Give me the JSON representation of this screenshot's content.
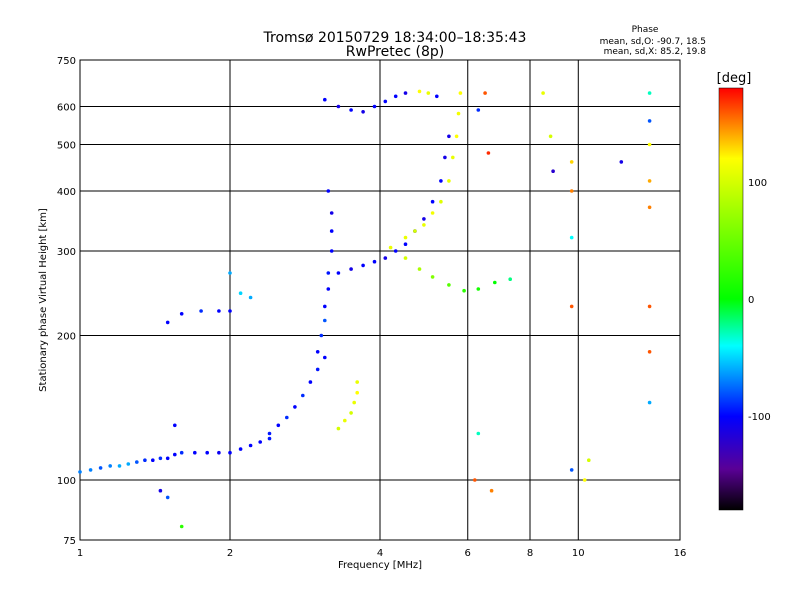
{
  "chart_data": {
    "type": "scatter",
    "title": "Tromsø 20150729 18:34:00–18:35:43",
    "subtitle": "RwPretec (8p)",
    "xlabel": "Frequency [MHz]",
    "ylabel": "Stationary phase Virtual Height [km]",
    "x_scale": "log",
    "y_scale": "log",
    "xlim": [
      1,
      16
    ],
    "ylim": [
      75,
      750
    ],
    "x_ticks": [
      1,
      2,
      4,
      6,
      8,
      10,
      16
    ],
    "x_gridlines": [
      2,
      4,
      6,
      8,
      10
    ],
    "y_ticks": [
      75,
      100,
      200,
      300,
      400,
      500,
      600,
      750
    ],
    "y_gridlines": [
      100,
      200,
      300,
      400,
      500,
      600
    ],
    "grid": true,
    "stats": {
      "heading": "Phase",
      "line_o": "mean, sd,O: -90.7, 18.5",
      "line_x": "mean, sd,X:  85.2, 19.8"
    },
    "colorbar": {
      "label": "[deg]",
      "range": [
        -180,
        180
      ],
      "ticks": [
        100,
        0,
        -100
      ],
      "tick_labels": [
        "100",
        "0",
        "-100"
      ],
      "colormap": "rainbow",
      "stops": [
        {
          "value": 180,
          "color": "#ff0000"
        },
        {
          "value": 120,
          "color": "#ffff00"
        },
        {
          "value": 0,
          "color": "#00ff00"
        },
        {
          "value": -40,
          "color": "#00ffff"
        },
        {
          "value": -100,
          "color": "#0000ff"
        },
        {
          "value": -145,
          "color": "#5a0096"
        },
        {
          "value": -180,
          "color": "#000000"
        }
      ]
    },
    "series": [
      {
        "trace": "low-E-region",
        "points": [
          {
            "x": 1.0,
            "y": 104,
            "phase": -70
          },
          {
            "x": 1.05,
            "y": 105,
            "phase": -70
          },
          {
            "x": 1.1,
            "y": 106,
            "phase": -80
          },
          {
            "x": 1.15,
            "y": 107,
            "phase": -70
          },
          {
            "x": 1.2,
            "y": 107,
            "phase": -60
          },
          {
            "x": 1.25,
            "y": 108,
            "phase": -60
          },
          {
            "x": 1.3,
            "y": 109,
            "phase": -80
          },
          {
            "x": 1.35,
            "y": 110,
            "phase": -90
          },
          {
            "x": 1.4,
            "y": 110,
            "phase": -100
          },
          {
            "x": 1.45,
            "y": 111,
            "phase": -90
          },
          {
            "x": 1.5,
            "y": 111,
            "phase": -100
          },
          {
            "x": 1.55,
            "y": 113,
            "phase": -100
          },
          {
            "x": 1.6,
            "y": 114,
            "phase": -90
          },
          {
            "x": 1.7,
            "y": 114,
            "phase": -100
          },
          {
            "x": 1.8,
            "y": 114,
            "phase": -100
          },
          {
            "x": 1.9,
            "y": 114,
            "phase": -105
          },
          {
            "x": 2.0,
            "y": 114,
            "phase": -100
          },
          {
            "x": 2.1,
            "y": 116,
            "phase": -100
          },
          {
            "x": 2.2,
            "y": 118,
            "phase": -100
          },
          {
            "x": 2.3,
            "y": 120,
            "phase": -100
          },
          {
            "x": 2.4,
            "y": 122,
            "phase": -95
          }
        ]
      },
      {
        "trace": "lower-cusp-ramp",
        "points": [
          {
            "x": 2.4,
            "y": 125,
            "phase": -95
          },
          {
            "x": 2.5,
            "y": 130,
            "phase": -100
          },
          {
            "x": 2.6,
            "y": 135,
            "phase": -90
          },
          {
            "x": 2.7,
            "y": 142,
            "phase": -100
          },
          {
            "x": 2.8,
            "y": 150,
            "phase": -90
          },
          {
            "x": 2.9,
            "y": 160,
            "phase": -100
          },
          {
            "x": 3.0,
            "y": 170,
            "phase": -95
          },
          {
            "x": 3.1,
            "y": 180,
            "phase": -100
          }
        ]
      },
      {
        "trace": "scatter-1.5-2.2",
        "points": [
          {
            "x": 1.5,
            "y": 213,
            "phase": -100
          },
          {
            "x": 1.6,
            "y": 222,
            "phase": -100
          },
          {
            "x": 1.75,
            "y": 225,
            "phase": -90
          },
          {
            "x": 1.9,
            "y": 225,
            "phase": -100
          },
          {
            "x": 2.0,
            "y": 225,
            "phase": -100
          },
          {
            "x": 2.0,
            "y": 270,
            "phase": -60
          },
          {
            "x": 2.1,
            "y": 245,
            "phase": -50
          },
          {
            "x": 2.2,
            "y": 240,
            "phase": -60
          },
          {
            "x": 1.55,
            "y": 130,
            "phase": -100
          },
          {
            "x": 1.45,
            "y": 95,
            "phase": -110
          },
          {
            "x": 1.5,
            "y": 92,
            "phase": -80
          },
          {
            "x": 1.6,
            "y": 80,
            "phase": 20
          }
        ]
      },
      {
        "trace": "f-region-vertical-3.1",
        "points": [
          {
            "x": 3.0,
            "y": 185,
            "phase": -100
          },
          {
            "x": 3.05,
            "y": 200,
            "phase": -90
          },
          {
            "x": 3.1,
            "y": 215,
            "phase": -80
          },
          {
            "x": 3.1,
            "y": 230,
            "phase": -100
          },
          {
            "x": 3.15,
            "y": 250,
            "phase": -100
          },
          {
            "x": 3.15,
            "y": 270,
            "phase": -95
          },
          {
            "x": 3.2,
            "y": 300,
            "phase": -100
          },
          {
            "x": 3.2,
            "y": 330,
            "phase": -100
          },
          {
            "x": 3.2,
            "y": 360,
            "phase": -110
          },
          {
            "x": 3.15,
            "y": 400,
            "phase": -100
          }
        ]
      },
      {
        "trace": "f2-layer",
        "points": [
          {
            "x": 3.3,
            "y": 270,
            "phase": -100
          },
          {
            "x": 3.5,
            "y": 275,
            "phase": -110
          },
          {
            "x": 3.7,
            "y": 280,
            "phase": -100
          },
          {
            "x": 3.9,
            "y": 285,
            "phase": -100
          },
          {
            "x": 4.1,
            "y": 290,
            "phase": -110
          },
          {
            "x": 4.3,
            "y": 300,
            "phase": -100
          },
          {
            "x": 4.5,
            "y": 310,
            "phase": -100
          },
          {
            "x": 4.7,
            "y": 330,
            "phase": -110
          },
          {
            "x": 4.9,
            "y": 350,
            "phase": -110
          },
          {
            "x": 5.1,
            "y": 380,
            "phase": -100
          },
          {
            "x": 5.3,
            "y": 420,
            "phase": -100
          },
          {
            "x": 5.4,
            "y": 470,
            "phase": -110
          },
          {
            "x": 5.5,
            "y": 520,
            "phase": -110
          }
        ]
      },
      {
        "trace": "top-layer",
        "points": [
          {
            "x": 3.1,
            "y": 620,
            "phase": -100
          },
          {
            "x": 3.3,
            "y": 600,
            "phase": -110
          },
          {
            "x": 3.5,
            "y": 590,
            "phase": -100
          },
          {
            "x": 3.7,
            "y": 585,
            "phase": -110
          },
          {
            "x": 3.9,
            "y": 600,
            "phase": -100
          },
          {
            "x": 4.1,
            "y": 615,
            "phase": -100
          },
          {
            "x": 4.3,
            "y": 630,
            "phase": -100
          },
          {
            "x": 4.5,
            "y": 640,
            "phase": -110
          },
          {
            "x": 4.8,
            "y": 645,
            "phase": 120
          },
          {
            "x": 5.0,
            "y": 640,
            "phase": 110
          },
          {
            "x": 5.2,
            "y": 630,
            "phase": -100
          }
        ]
      },
      {
        "trace": "x-mode-yellow-upper",
        "points": [
          {
            "x": 4.5,
            "y": 320,
            "phase": 110
          },
          {
            "x": 4.7,
            "y": 330,
            "phase": 100
          },
          {
            "x": 4.9,
            "y": 340,
            "phase": 110
          },
          {
            "x": 5.1,
            "y": 360,
            "phase": 115
          },
          {
            "x": 5.3,
            "y": 380,
            "phase": 105
          },
          {
            "x": 5.5,
            "y": 420,
            "phase": 110
          },
          {
            "x": 5.6,
            "y": 470,
            "phase": 110
          },
          {
            "x": 5.7,
            "y": 520,
            "phase": 120
          },
          {
            "x": 5.75,
            "y": 580,
            "phase": 115
          },
          {
            "x": 5.8,
            "y": 640,
            "phase": 120
          }
        ]
      },
      {
        "trace": "x-mode-yellow-lower",
        "points": [
          {
            "x": 3.3,
            "y": 128,
            "phase": 100
          },
          {
            "x": 3.4,
            "y": 133,
            "phase": 110
          },
          {
            "x": 3.5,
            "y": 138,
            "phase": 100
          },
          {
            "x": 3.55,
            "y": 145,
            "phase": 110
          },
          {
            "x": 3.6,
            "y": 152,
            "phase": 120
          },
          {
            "x": 3.6,
            "y": 160,
            "phase": 110
          }
        ]
      },
      {
        "trace": "yellow-green-descending",
        "points": [
          {
            "x": 4.2,
            "y": 305,
            "phase": 110
          },
          {
            "x": 4.5,
            "y": 290,
            "phase": 100
          },
          {
            "x": 4.8,
            "y": 275,
            "phase": 80
          },
          {
            "x": 5.1,
            "y": 265,
            "phase": 60
          },
          {
            "x": 5.5,
            "y": 255,
            "phase": 40
          },
          {
            "x": 5.9,
            "y": 248,
            "phase": 20
          },
          {
            "x": 6.3,
            "y": 250,
            "phase": 10
          },
          {
            "x": 6.8,
            "y": 258,
            "phase": 0
          },
          {
            "x": 7.3,
            "y": 262,
            "phase": -20
          }
        ]
      },
      {
        "trace": "high-frequency-sparse",
        "points": [
          {
            "x": 6.5,
            "y": 640,
            "phase": 160
          },
          {
            "x": 6.6,
            "y": 480,
            "phase": 170
          },
          {
            "x": 6.3,
            "y": 590,
            "phase": -90
          },
          {
            "x": 8.5,
            "y": 640,
            "phase": 110
          },
          {
            "x": 8.8,
            "y": 520,
            "phase": 100
          },
          {
            "x": 9.7,
            "y": 460,
            "phase": 130
          },
          {
            "x": 9.7,
            "y": 400,
            "phase": 150
          },
          {
            "x": 9.7,
            "y": 320,
            "phase": -40
          },
          {
            "x": 9.7,
            "y": 230,
            "phase": 160
          },
          {
            "x": 9.7,
            "y": 105,
            "phase": -80
          },
          {
            "x": 8.9,
            "y": 440,
            "phase": -120
          },
          {
            "x": 10.3,
            "y": 100,
            "phase": 120
          },
          {
            "x": 10.5,
            "y": 110,
            "phase": 100
          },
          {
            "x": 12.2,
            "y": 460,
            "phase": -110
          },
          {
            "x": 13.9,
            "y": 640,
            "phase": -30
          },
          {
            "x": 13.9,
            "y": 560,
            "phase": -80
          },
          {
            "x": 13.9,
            "y": 500,
            "phase": 120
          },
          {
            "x": 13.9,
            "y": 420,
            "phase": 140
          },
          {
            "x": 13.9,
            "y": 370,
            "phase": 150
          },
          {
            "x": 13.9,
            "y": 230,
            "phase": 160
          },
          {
            "x": 13.9,
            "y": 185,
            "phase": 160
          },
          {
            "x": 13.9,
            "y": 145,
            "phase": -60
          },
          {
            "x": 6.3,
            "y": 125,
            "phase": -30
          },
          {
            "x": 6.7,
            "y": 95,
            "phase": 150
          },
          {
            "x": 6.2,
            "y": 100,
            "phase": 160
          }
        ]
      }
    ]
  }
}
